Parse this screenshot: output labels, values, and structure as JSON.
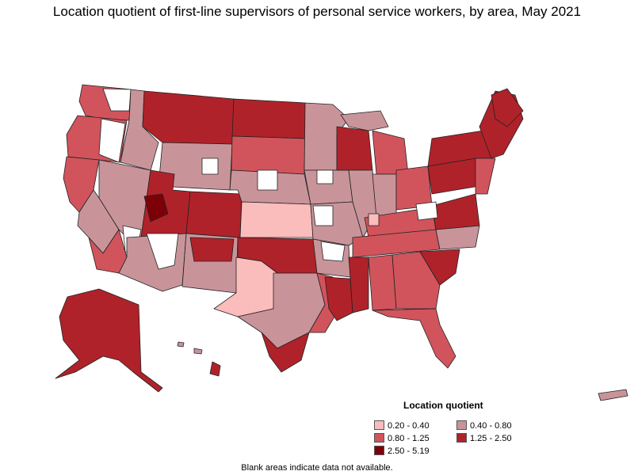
{
  "title": "Location quotient of first-line supervisors of personal service workers, by area, May 2021",
  "legend": {
    "title": "Location quotient",
    "items": [
      {
        "label": "0.20 - 0.40",
        "color": "#fbbcbc"
      },
      {
        "label": "0.40 - 0.80",
        "color": "#c8949a"
      },
      {
        "label": "0.80 - 1.25",
        "color": "#d1545c"
      },
      {
        "label": "1.25 - 2.50",
        "color": "#b0222a"
      },
      {
        "label": "2.50 - 5.19",
        "color": "#7d0008"
      }
    ]
  },
  "footnote": "Blank areas indicate data not available.",
  "colors": {
    "blank": "#ffffff",
    "outline": "#222222"
  }
}
